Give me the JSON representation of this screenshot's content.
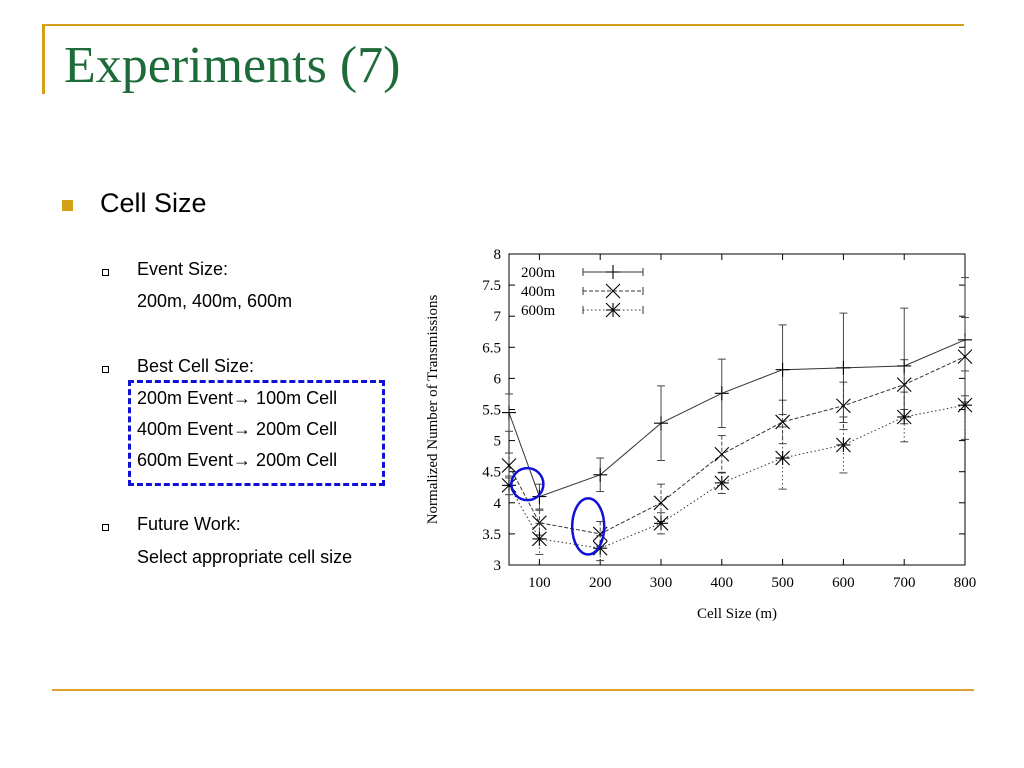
{
  "slide": {
    "title": "Experiments (7)",
    "bullet": "Cell Size",
    "items": [
      {
        "heading": "Event Size:",
        "lines": [
          "200m, 400m, 600m"
        ]
      },
      {
        "heading": "Best Cell Size:",
        "lines": [
          "200m Event→ 100m Cell",
          "400m Event→ 200m Cell",
          "600m Event→ 200m Cell"
        ]
      },
      {
        "heading": "Future Work:",
        "lines": [
          "Select appropriate cell size"
        ]
      }
    ]
  },
  "colors": {
    "title": "#1e6b3a",
    "accent": "#d4a017",
    "highlight": "#1010d8"
  },
  "chart_data": {
    "type": "line",
    "xlabel": "Cell Size (m)",
    "ylabel": "Normalized Number of Transmissions",
    "xlim": [
      50,
      800
    ],
    "ylim": [
      3,
      8
    ],
    "x_ticks": [
      100,
      200,
      300,
      400,
      500,
      600,
      700,
      800
    ],
    "y_ticks": [
      3,
      3.5,
      4,
      4.5,
      5,
      5.5,
      6,
      6.5,
      7,
      7.5,
      8
    ],
    "y_tick_labels": [
      "3",
      "3.5",
      "4",
      "4.5",
      "5",
      "5.5",
      "6",
      "6.5",
      "7",
      "7.5",
      "8"
    ],
    "legend_position": "top-left",
    "series": [
      {
        "name": "200m",
        "marker": "plus",
        "dash": "solid",
        "x": [
          50,
          100,
          200,
          300,
          400,
          500,
          600,
          700,
          800
        ],
        "values": [
          5.45,
          4.1,
          4.45,
          5.28,
          5.76,
          6.14,
          6.17,
          6.2,
          6.62
        ],
        "err": [
          0.3,
          0.2,
          0.27,
          0.6,
          0.55,
          0.72,
          0.88,
          0.93,
          1.0
        ]
      },
      {
        "name": "400m",
        "marker": "x",
        "dash": "dashed",
        "x": [
          50,
          100,
          200,
          300,
          400,
          500,
          600,
          700,
          800
        ],
        "values": [
          4.6,
          3.68,
          3.5,
          4.0,
          4.78,
          5.3,
          5.56,
          5.9,
          6.35
        ],
        "err": [
          0.2,
          0.2,
          0.2,
          0.3,
          0.3,
          0.35,
          0.38,
          0.4,
          0.63
        ]
      },
      {
        "name": "600m",
        "marker": "star",
        "dash": "dotted",
        "x": [
          50,
          100,
          200,
          300,
          400,
          500,
          600,
          700,
          800
        ],
        "values": [
          4.28,
          3.42,
          3.27,
          3.67,
          4.32,
          4.72,
          4.93,
          5.38,
          5.57
        ],
        "err": [
          0.15,
          0.25,
          0.2,
          0.17,
          0.17,
          0.5,
          0.45,
          0.4,
          0.55
        ]
      }
    ],
    "annotations": [
      {
        "shape": "ellipse",
        "x": 100,
        "y": 4.3
      },
      {
        "shape": "ellipse",
        "x": 200,
        "y": 3.62
      }
    ]
  }
}
